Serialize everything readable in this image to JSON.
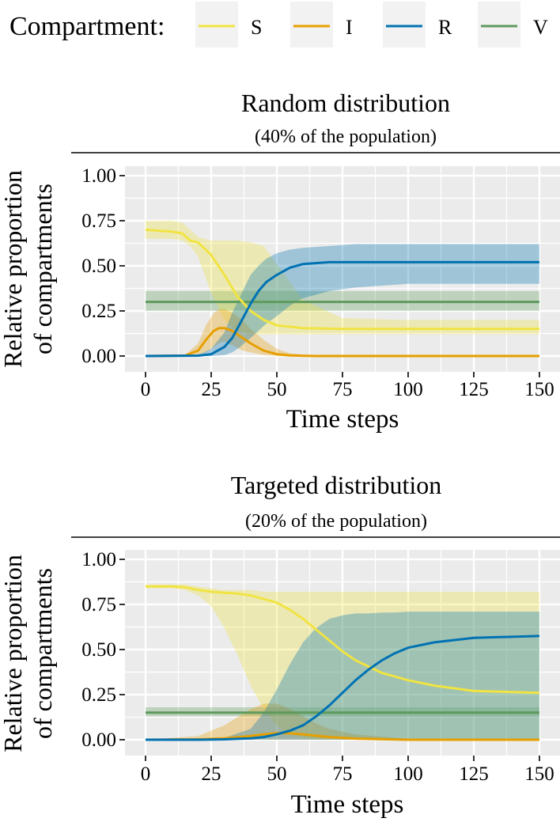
{
  "legend": {
    "title": "Compartment:",
    "entries": [
      {
        "label": "S",
        "color": "#F0E442"
      },
      {
        "label": "I",
        "color": "#E69F00"
      },
      {
        "label": "R",
        "color": "#0072B2"
      },
      {
        "label": "V",
        "color": "#5E9A5C"
      }
    ]
  },
  "chart_data": [
    {
      "type": "line",
      "title": "Random distribution",
      "subtitle": "(40% of the population)",
      "xlabel": "Time steps",
      "ylabel": "Relative proportion of compartments",
      "ylabel_lines": [
        "Relative proportion",
        "of compartments"
      ],
      "xlim": [
        0,
        150
      ],
      "ylim": [
        0,
        1
      ],
      "xticks": [
        "0",
        "25",
        "50",
        "75",
        "100",
        "125",
        "150"
      ],
      "yticks": [
        "0.00",
        "0.25",
        "0.50",
        "0.75",
        "1.00"
      ],
      "grid": true,
      "ribbons": true,
      "series": [
        {
          "name": "S",
          "color": "#F0E442",
          "x": [
            0,
            10,
            14,
            17,
            20,
            25,
            30,
            35,
            40,
            45,
            50,
            60,
            75,
            100,
            150
          ],
          "y": [
            0.7,
            0.69,
            0.68,
            0.64,
            0.63,
            0.56,
            0.45,
            0.33,
            0.25,
            0.2,
            0.17,
            0.155,
            0.15,
            0.15,
            0.15
          ],
          "lo": [
            0.65,
            0.65,
            0.64,
            0.61,
            0.55,
            0.35,
            0.2,
            0.14,
            0.12,
            0.12,
            0.12,
            0.12,
            0.12,
            0.12,
            0.12
          ],
          "hi": [
            0.75,
            0.75,
            0.74,
            0.7,
            0.66,
            0.64,
            0.64,
            0.64,
            0.63,
            0.61,
            0.51,
            0.31,
            0.21,
            0.2,
            0.2
          ]
        },
        {
          "name": "I",
          "color": "#E69F00",
          "x": [
            0,
            15,
            20,
            23,
            26,
            28,
            30,
            33,
            37,
            40,
            45,
            50,
            55,
            65,
            150
          ],
          "y": [
            0,
            0.002,
            0.03,
            0.09,
            0.14,
            0.155,
            0.155,
            0.14,
            0.1,
            0.07,
            0.03,
            0.01,
            0.003,
            0,
            0
          ],
          "lo": [
            0,
            0,
            0.005,
            0.02,
            0.05,
            0.07,
            0.08,
            0.06,
            0.03,
            0.02,
            0.005,
            0,
            0,
            0,
            0
          ],
          "hi": [
            0,
            0.005,
            0.07,
            0.17,
            0.24,
            0.26,
            0.26,
            0.24,
            0.2,
            0.15,
            0.09,
            0.04,
            0.015,
            0,
            0
          ]
        },
        {
          "name": "R",
          "color": "#0072B2",
          "x": [
            0,
            20,
            25,
            30,
            33,
            36,
            40,
            43,
            46,
            50,
            55,
            60,
            70,
            80,
            100,
            150
          ],
          "y": [
            0,
            0.002,
            0.01,
            0.05,
            0.1,
            0.18,
            0.29,
            0.36,
            0.41,
            0.45,
            0.49,
            0.51,
            0.52,
            0.52,
            0.52,
            0.52
          ],
          "lo": [
            0,
            0,
            0,
            0.005,
            0.02,
            0.05,
            0.1,
            0.14,
            0.18,
            0.22,
            0.28,
            0.32,
            0.36,
            0.38,
            0.4,
            0.4
          ],
          "hi": [
            0,
            0.005,
            0.04,
            0.13,
            0.24,
            0.33,
            0.45,
            0.5,
            0.54,
            0.57,
            0.59,
            0.6,
            0.61,
            0.62,
            0.62,
            0.62
          ]
        },
        {
          "name": "V",
          "color": "#5E9A5C",
          "x": [
            0,
            150
          ],
          "y": [
            0.3,
            0.3
          ],
          "lo": [
            0.25,
            0.25
          ],
          "hi": [
            0.36,
            0.36
          ]
        }
      ]
    },
    {
      "type": "line",
      "title": "Targeted distribution",
      "subtitle": "(20% of the population)",
      "xlabel": "Time steps",
      "ylabel": "Relative proportion of compartments",
      "ylabel_lines": [
        "Relative proportion",
        "of compartments"
      ],
      "xlim": [
        0,
        150
      ],
      "ylim": [
        0,
        1
      ],
      "xticks": [
        "0",
        "25",
        "50",
        "75",
        "100",
        "125",
        "150"
      ],
      "yticks": [
        "0.00",
        "0.25",
        "0.50",
        "0.75",
        "1.00"
      ],
      "grid": true,
      "ribbons": true,
      "series": [
        {
          "name": "S",
          "color": "#F0E442",
          "x": [
            0,
            10,
            15,
            20,
            25,
            30,
            35,
            40,
            45,
            50,
            55,
            60,
            65,
            70,
            75,
            80,
            90,
            100,
            110,
            125,
            150
          ],
          "y": [
            0.85,
            0.85,
            0.845,
            0.83,
            0.82,
            0.815,
            0.81,
            0.8,
            0.78,
            0.76,
            0.72,
            0.67,
            0.61,
            0.55,
            0.49,
            0.44,
            0.37,
            0.33,
            0.3,
            0.27,
            0.26
          ],
          "lo": [
            0.84,
            0.84,
            0.83,
            0.8,
            0.74,
            0.62,
            0.47,
            0.3,
            0.17,
            0.08,
            0.03,
            0.01,
            0,
            0,
            0,
            0,
            0,
            0,
            0,
            0,
            0
          ],
          "hi": [
            0.86,
            0.86,
            0.86,
            0.85,
            0.84,
            0.83,
            0.83,
            0.83,
            0.82,
            0.82,
            0.82,
            0.82,
            0.82,
            0.82,
            0.82,
            0.82,
            0.82,
            0.82,
            0.82,
            0.82,
            0.82
          ]
        },
        {
          "name": "I",
          "color": "#E69F00",
          "x": [
            0,
            20,
            30,
            40,
            45,
            50,
            55,
            60,
            65,
            70,
            80,
            100,
            150
          ],
          "y": [
            0,
            0.002,
            0.008,
            0.02,
            0.03,
            0.037,
            0.035,
            0.03,
            0.022,
            0.015,
            0.006,
            0,
            0
          ],
          "lo": [
            0,
            0,
            0,
            0,
            0,
            0,
            0,
            0,
            0,
            0,
            0,
            0,
            0
          ],
          "hi": [
            0,
            0.02,
            0.08,
            0.17,
            0.2,
            0.2,
            0.17,
            0.13,
            0.09,
            0.06,
            0.03,
            0.005,
            0
          ]
        },
        {
          "name": "R",
          "color": "#0072B2",
          "x": [
            0,
            20,
            30,
            40,
            45,
            50,
            55,
            60,
            65,
            70,
            75,
            80,
            85,
            90,
            95,
            100,
            110,
            125,
            150
          ],
          "y": [
            0,
            0,
            0.002,
            0.008,
            0.015,
            0.03,
            0.05,
            0.08,
            0.13,
            0.19,
            0.26,
            0.33,
            0.39,
            0.44,
            0.48,
            0.51,
            0.54,
            0.565,
            0.575
          ],
          "lo": [
            0,
            0,
            0,
            0,
            0,
            0,
            0,
            0,
            0,
            0,
            0,
            0,
            0,
            0,
            0,
            0,
            0,
            0,
            0
          ],
          "hi": [
            0,
            0,
            0.01,
            0.06,
            0.15,
            0.28,
            0.42,
            0.54,
            0.62,
            0.67,
            0.69,
            0.7,
            0.7,
            0.705,
            0.705,
            0.71,
            0.71,
            0.71,
            0.71
          ]
        },
        {
          "name": "V",
          "color": "#5E9A5C",
          "x": [
            0,
            150
          ],
          "y": [
            0.15,
            0.15
          ],
          "lo": [
            0.13,
            0.13
          ],
          "hi": [
            0.18,
            0.18
          ]
        }
      ]
    }
  ]
}
